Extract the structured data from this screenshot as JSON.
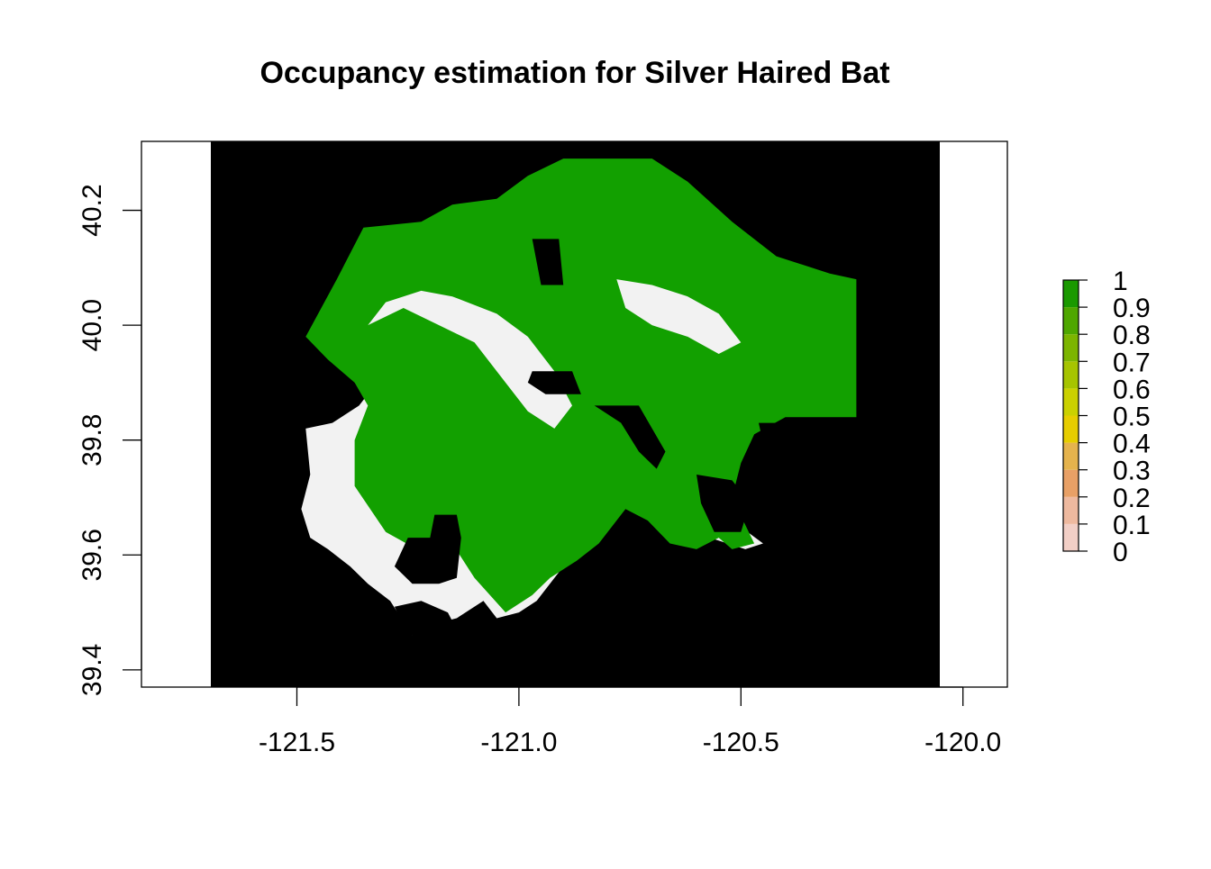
{
  "chart_data": {
    "type": "heatmap",
    "title": "Occupancy estimation for Silver Haired Bat",
    "xlabel": "",
    "ylabel": "",
    "x_ticks": [
      "-121.5",
      "-121.0",
      "-120.5",
      "-120.0"
    ],
    "y_ticks": [
      "39.4",
      "39.6",
      "39.8",
      "40.0",
      "40.2"
    ],
    "xlim": [
      -121.85,
      -119.9
    ],
    "ylim": [
      39.37,
      40.32
    ],
    "grid": false,
    "legend_position": "right",
    "legend": {
      "labels": [
        "0",
        "0.1",
        "0.2",
        "0.3",
        "0.4",
        "0.5",
        "0.6",
        "0.7",
        "0.8",
        "0.9",
        "1"
      ],
      "colors": [
        "#f2f2f2",
        "#f2cfc6",
        "#eeb99f",
        "#e8a066",
        "#e5b34d",
        "#e6cd00",
        "#cbd100",
        "#a6c400",
        "#7cb500",
        "#4fa700",
        "#1a9900"
      ]
    },
    "colors": {
      "background_raster": "#000000",
      "low_occupancy": "#f2f2f2",
      "high_occupancy": "#12a000"
    },
    "regions": [
      {
        "class": "low",
        "polygon": [
          [
            -121.48,
            39.82
          ],
          [
            -121.42,
            39.83
          ],
          [
            -121.36,
            39.86
          ],
          [
            -121.34,
            39.88
          ],
          [
            -121.36,
            39.95
          ],
          [
            -121.39,
            40.0
          ],
          [
            -121.38,
            40.08
          ],
          [
            -121.32,
            40.13
          ],
          [
            -121.24,
            40.16
          ],
          [
            -121.08,
            40.2
          ],
          [
            -121.04,
            40.2
          ],
          [
            -120.98,
            40.15
          ],
          [
            -120.92,
            40.1
          ],
          [
            -120.88,
            40.02
          ],
          [
            -120.85,
            39.96
          ],
          [
            -120.82,
            39.9
          ],
          [
            -120.76,
            39.86
          ],
          [
            -120.72,
            39.84
          ],
          [
            -120.68,
            39.78
          ],
          [
            -120.6,
            39.72
          ],
          [
            -120.52,
            39.66
          ],
          [
            -120.45,
            39.62
          ],
          [
            -120.49,
            39.61
          ],
          [
            -120.57,
            39.63
          ],
          [
            -120.63,
            39.66
          ],
          [
            -120.68,
            39.7
          ],
          [
            -120.73,
            39.73
          ],
          [
            -120.78,
            39.7
          ],
          [
            -120.81,
            39.66
          ],
          [
            -120.85,
            39.63
          ],
          [
            -120.91,
            39.57
          ],
          [
            -120.96,
            39.52
          ],
          [
            -121.0,
            39.5
          ],
          [
            -121.05,
            39.49
          ],
          [
            -121.08,
            39.52
          ],
          [
            -121.14,
            39.49
          ],
          [
            -121.19,
            39.48
          ],
          [
            -121.24,
            39.46
          ],
          [
            -121.29,
            39.52
          ],
          [
            -121.34,
            39.55
          ],
          [
            -121.38,
            39.58
          ],
          [
            -121.43,
            39.61
          ],
          [
            -121.47,
            39.63
          ],
          [
            -121.49,
            39.68
          ],
          [
            -121.47,
            39.74
          ]
        ]
      },
      {
        "class": "high",
        "polygon": [
          [
            -121.48,
            39.98
          ],
          [
            -121.41,
            40.08
          ],
          [
            -121.35,
            40.17
          ],
          [
            -121.22,
            40.18
          ],
          [
            -121.15,
            40.21
          ],
          [
            -121.05,
            40.22
          ],
          [
            -120.98,
            40.26
          ],
          [
            -120.9,
            40.29
          ],
          [
            -120.78,
            40.29
          ],
          [
            -120.7,
            40.29
          ],
          [
            -120.62,
            40.25
          ],
          [
            -120.52,
            40.18
          ],
          [
            -120.42,
            40.12
          ],
          [
            -120.3,
            40.09
          ],
          [
            -120.24,
            40.08
          ],
          [
            -120.24,
            39.84
          ],
          [
            -120.3,
            39.84
          ],
          [
            -120.4,
            39.84
          ],
          [
            -120.47,
            39.81
          ],
          [
            -120.5,
            39.76
          ],
          [
            -120.52,
            39.7
          ],
          [
            -120.47,
            39.62
          ],
          [
            -120.52,
            39.61
          ],
          [
            -120.55,
            39.63
          ],
          [
            -120.6,
            39.61
          ],
          [
            -120.66,
            39.62
          ],
          [
            -120.71,
            39.66
          ],
          [
            -120.76,
            39.68
          ],
          [
            -120.82,
            39.62
          ],
          [
            -120.87,
            39.59
          ],
          [
            -120.93,
            39.56
          ],
          [
            -120.97,
            39.53
          ],
          [
            -121.03,
            39.5
          ],
          [
            -121.1,
            39.56
          ],
          [
            -121.15,
            39.62
          ],
          [
            -121.23,
            39.61
          ],
          [
            -121.3,
            39.64
          ],
          [
            -121.37,
            39.72
          ],
          [
            -121.37,
            39.8
          ],
          [
            -121.34,
            39.86
          ],
          [
            -121.37,
            39.9
          ],
          [
            -121.43,
            39.94
          ]
        ]
      },
      {
        "class": "low",
        "polygon": [
          [
            -121.34,
            40.0
          ],
          [
            -121.26,
            40.03
          ],
          [
            -121.18,
            40.0
          ],
          [
            -121.1,
            39.97
          ],
          [
            -121.05,
            39.92
          ],
          [
            -120.98,
            39.85
          ],
          [
            -120.92,
            39.82
          ],
          [
            -120.88,
            39.86
          ],
          [
            -120.92,
            39.92
          ],
          [
            -120.98,
            39.98
          ],
          [
            -121.05,
            40.02
          ],
          [
            -121.15,
            40.05
          ],
          [
            -121.22,
            40.06
          ],
          [
            -121.3,
            40.04
          ]
        ]
      },
      {
        "class": "low",
        "polygon": [
          [
            -120.78,
            40.08
          ],
          [
            -120.7,
            40.07
          ],
          [
            -120.62,
            40.05
          ],
          [
            -120.55,
            40.02
          ],
          [
            -120.5,
            39.97
          ],
          [
            -120.55,
            39.95
          ],
          [
            -120.62,
            39.98
          ],
          [
            -120.7,
            40.0
          ],
          [
            -120.76,
            40.03
          ]
        ]
      },
      {
        "class": "none",
        "polygon": [
          [
            -121.19,
            39.67
          ],
          [
            -121.14,
            39.67
          ],
          [
            -121.13,
            39.63
          ],
          [
            -121.14,
            39.56
          ],
          [
            -121.18,
            39.55
          ],
          [
            -121.24,
            39.55
          ],
          [
            -121.28,
            39.58
          ],
          [
            -121.25,
            39.63
          ],
          [
            -121.2,
            39.63
          ]
        ]
      },
      {
        "class": "none",
        "polygon": [
          [
            -121.28,
            39.51
          ],
          [
            -121.22,
            39.52
          ],
          [
            -121.16,
            39.5
          ],
          [
            -121.14,
            39.47
          ],
          [
            -121.2,
            39.46
          ],
          [
            -121.25,
            39.46
          ]
        ]
      },
      {
        "class": "none",
        "polygon": [
          [
            -120.97,
            40.15
          ],
          [
            -120.91,
            40.15
          ],
          [
            -120.9,
            40.07
          ],
          [
            -120.95,
            40.07
          ],
          [
            -120.96,
            40.11
          ]
        ]
      },
      {
        "class": "none",
        "polygon": [
          [
            -120.97,
            39.92
          ],
          [
            -120.88,
            39.92
          ],
          [
            -120.86,
            39.88
          ],
          [
            -120.94,
            39.88
          ],
          [
            -120.98,
            39.9
          ]
        ]
      },
      {
        "class": "none",
        "polygon": [
          [
            -120.83,
            39.86
          ],
          [
            -120.73,
            39.86
          ],
          [
            -120.7,
            39.82
          ],
          [
            -120.67,
            39.78
          ],
          [
            -120.69,
            39.75
          ],
          [
            -120.73,
            39.78
          ],
          [
            -120.77,
            39.83
          ]
        ]
      },
      {
        "class": "none",
        "polygon": [
          [
            -120.6,
            39.74
          ],
          [
            -120.52,
            39.73
          ],
          [
            -120.48,
            39.69
          ],
          [
            -120.5,
            39.64
          ],
          [
            -120.56,
            39.64
          ],
          [
            -120.59,
            39.69
          ]
        ]
      },
      {
        "class": "none",
        "polygon": [
          [
            -120.46,
            39.83
          ],
          [
            -120.41,
            39.83
          ],
          [
            -120.4,
            39.77
          ],
          [
            -120.44,
            39.76
          ]
        ]
      }
    ]
  }
}
